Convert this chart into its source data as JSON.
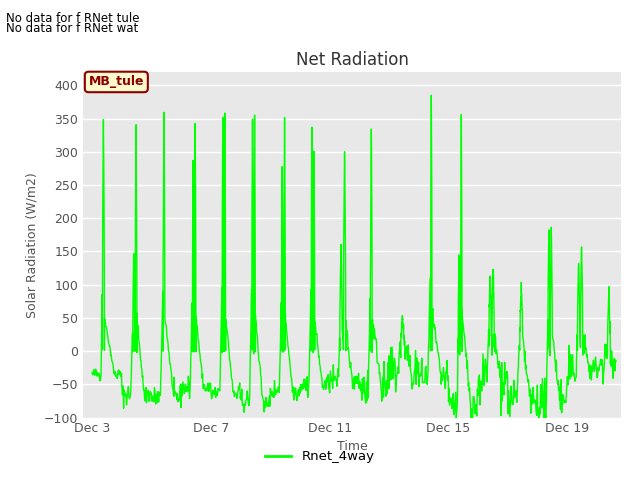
{
  "title": "Net Radiation",
  "xlabel": "Time",
  "ylabel": "Solar Radiation (W/m2)",
  "ylim": [
    -100,
    420
  ],
  "yticks": [
    -100,
    -50,
    0,
    50,
    100,
    150,
    200,
    250,
    300,
    350,
    400
  ],
  "line_color": "#00FF00",
  "line_width": 1.0,
  "legend_label": "Rnet_4way",
  "bg_color": "#E8E8E8",
  "fig_bg": "#FFFFFF",
  "no_data_text1": "No data for f RNet tule",
  "no_data_text2": "No data for f RNet wat",
  "mb_label": "MB_tule",
  "xtick_labels": [
    "Dec 3",
    "Dec 7",
    "Dec 11",
    "Dec 15",
    "Dec 19"
  ],
  "xtick_positions": [
    3,
    7,
    11,
    15,
    19
  ],
  "xlim": [
    2.7,
    20.8
  ]
}
